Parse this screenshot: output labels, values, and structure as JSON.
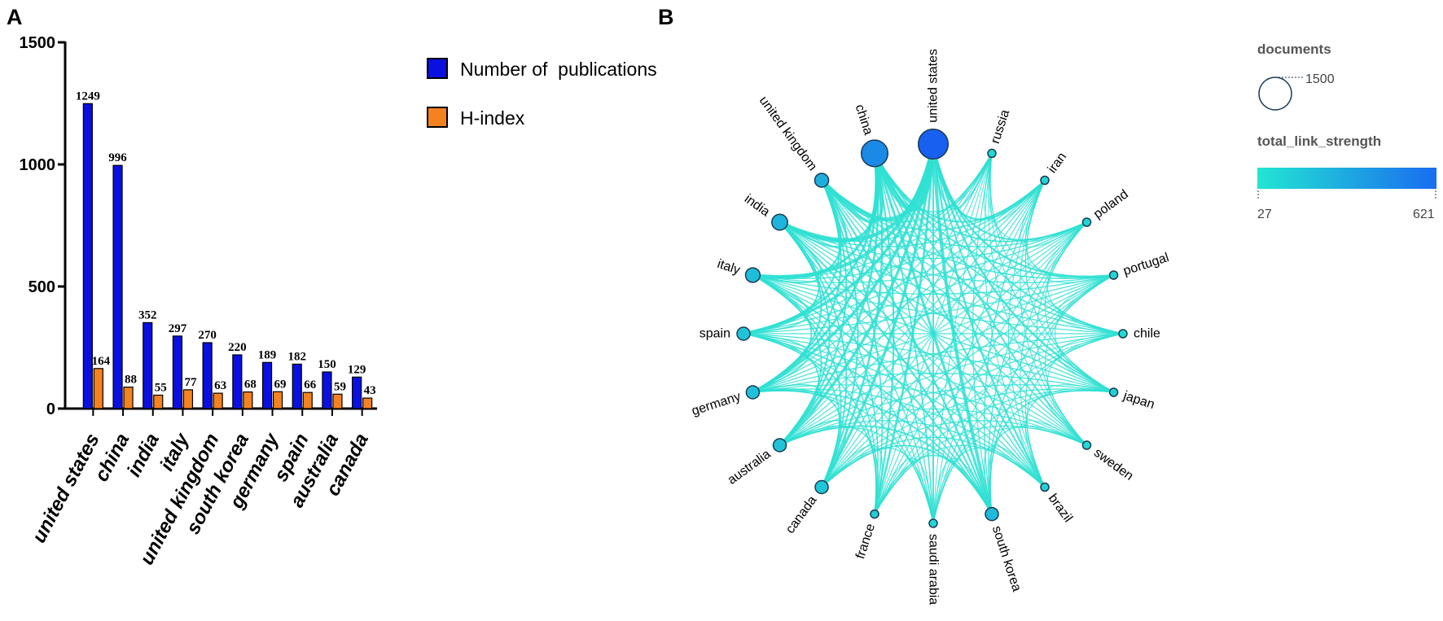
{
  "panel_a_letter": "A",
  "panel_b_letter": "B",
  "colors": {
    "publications": "#0a10e0",
    "hindex": "#f58220",
    "link": "#2ee0d2",
    "node_low": "#22e0d0",
    "node_high": "#1860f0",
    "node_stroke": "#1a3a55"
  },
  "chart_data": [
    {
      "type": "bar",
      "categories": [
        "united states",
        "china",
        "india",
        "italy",
        "united kingdom",
        "south korea",
        "germany",
        "spain",
        "australia",
        "canada"
      ],
      "series": [
        {
          "name": "Number of  publications",
          "values": [
            1249,
            996,
            352,
            297,
            270,
            220,
            189,
            182,
            150,
            129
          ]
        },
        {
          "name": "H-index",
          "values": [
            164,
            88,
            55,
            77,
            63,
            68,
            69,
            66,
            59,
            43
          ]
        }
      ],
      "ylim": [
        0,
        1500
      ],
      "yticks": [
        0,
        500,
        1000,
        1500
      ],
      "ytick_labels": [
        "0",
        "500",
        "1000",
        "1500"
      ],
      "grid": false,
      "legend_position": "top-right"
    },
    {
      "type": "network",
      "layout": "circular",
      "nodes": [
        {
          "label": "united states",
          "documents": 1249,
          "strength": 621
        },
        {
          "label": "russia",
          "strength": 60
        },
        {
          "label": "iran",
          "strength": 90
        },
        {
          "label": "poland",
          "strength": 70
        },
        {
          "label": "portugal",
          "strength": 80
        },
        {
          "label": "chile",
          "strength": 60
        },
        {
          "label": "japan",
          "strength": 90
        },
        {
          "label": "sweden",
          "strength": 60
        },
        {
          "label": "brazil",
          "strength": 90
        },
        {
          "label": "south korea",
          "documents": 220,
          "strength": 200
        },
        {
          "label": "saudi arabia",
          "strength": 70
        },
        {
          "label": "france",
          "strength": 110
        },
        {
          "label": "canada",
          "documents": 129,
          "strength": 150
        },
        {
          "label": "australia",
          "documents": 150,
          "strength": 160
        },
        {
          "label": "germany",
          "documents": 189,
          "strength": 170
        },
        {
          "label": "spain",
          "documents": 182,
          "strength": 160
        },
        {
          "label": "italy",
          "documents": 297,
          "strength": 190
        },
        {
          "label": "india",
          "documents": 352,
          "strength": 230
        },
        {
          "label": "united kingdom",
          "documents": 270,
          "strength": 260
        },
        {
          "label": "china",
          "documents": 996,
          "strength": 430
        }
      ],
      "legend": {
        "size_title": "documents",
        "size_value": "1500",
        "color_title": "total_link_strength",
        "color_min": "27",
        "color_max": "621"
      }
    }
  ]
}
